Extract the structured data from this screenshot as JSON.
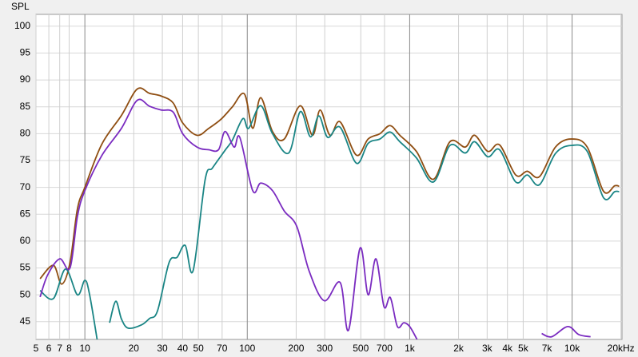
{
  "chart_data": {
    "type": "line",
    "ylabel": "SPL",
    "xscale": "log",
    "grid": true,
    "xlim": [
      5,
      20300
    ],
    "ylim": [
      41.7,
      102.2
    ],
    "yticks": [
      45,
      50,
      55,
      60,
      65,
      70,
      75,
      80,
      85,
      90,
      95,
      100
    ],
    "xticks": [
      5,
      6,
      7,
      8,
      10,
      20,
      30,
      40,
      50,
      70,
      100,
      200,
      300,
      500,
      700,
      {
        "value": 1000,
        "label": "1k"
      },
      {
        "value": 2000,
        "label": "2k"
      },
      {
        "value": 3000,
        "label": "3k"
      },
      {
        "value": 4000,
        "label": "4k"
      },
      {
        "value": 5000,
        "label": "5k"
      },
      {
        "value": 7000,
        "label": "7k"
      },
      {
        "value": 10000,
        "label": "10k"
      },
      {
        "value": 20000,
        "label": "20kHz"
      }
    ],
    "series": [
      {
        "color": "#8f4e12",
        "x": [
          5.3,
          6.4,
          7.2,
          8.1,
          9,
          10,
          12.7,
          16.8,
          21,
          25,
          29.5,
          35,
          40,
          49,
          58,
          69,
          81,
          96,
          108,
          121,
          143,
          169,
          212,
          252,
          281,
          323,
          373,
          470,
          555,
          656,
          757,
          870,
          1100,
          1400,
          1770,
          2200,
          2510,
          3030,
          3580,
          4500,
          5300,
          6300,
          7900,
          9870,
          12400,
          15600,
          18300,
          19500
        ],
        "values": [
          53,
          55.5,
          52,
          56,
          66,
          70,
          78,
          83.4,
          88.3,
          87.5,
          87,
          85.7,
          82,
          79.7,
          81,
          82.7,
          85,
          87.4,
          81,
          86.7,
          80.4,
          79,
          85.2,
          79.7,
          84.4,
          79.7,
          82.2,
          76,
          79,
          80,
          81.5,
          79.7,
          76.7,
          71.5,
          78.5,
          77.5,
          79.7,
          76.7,
          77.9,
          72.3,
          73,
          72,
          77.5,
          79,
          77.5,
          69.3,
          70.3,
          70.2
        ]
      },
      {
        "color": "#1a8585",
        "x": [
          5.3,
          6.4,
          7.6,
          9,
          10,
          10.7,
          12,
          13,
          14.2,
          15.5,
          16.8,
          18.5,
          22.3,
          25,
          28,
          33,
          37,
          41.5,
          46.4,
          55,
          61,
          73,
          81,
          94,
          102,
          121,
          143,
          180,
          212,
          245,
          276,
          313,
          373,
          470,
          555,
          656,
          757,
          870,
          1100,
          1400,
          1770,
          2200,
          2510,
          3030,
          3580,
          4500,
          5300,
          6300,
          7900,
          9870,
          12400,
          15600,
          18300,
          19500
        ],
        "values": [
          50.8,
          49.3,
          54.8,
          50,
          52.7,
          50,
          41,
          null,
          44.8,
          48.8,
          45.5,
          43.8,
          44.4,
          45.6,
          47,
          56,
          57,
          59.2,
          54.5,
          71.4,
          73.6,
          76.9,
          78.8,
          82.8,
          81,
          85.2,
          80,
          76.4,
          84.1,
          79.4,
          83.3,
          79.3,
          81.2,
          74.5,
          78.2,
          79,
          80.3,
          78.5,
          75.5,
          71,
          77.8,
          76.4,
          78.5,
          75.7,
          77,
          71,
          72.3,
          70.5,
          76.3,
          77.8,
          76.7,
          68.1,
          69.2,
          69.2
        ]
      },
      {
        "color": "#7a2bc0",
        "x": [
          5.3,
          5.9,
          7,
          8.1,
          9,
          10,
          12.7,
          16.8,
          21,
          25,
          29.5,
          35,
          40,
          49,
          58,
          66.5,
          73,
          83,
          90,
          108,
          121,
          143,
          169,
          202,
          240,
          298,
          373,
          420,
          495,
          555,
          620,
          695,
          760,
          840,
          920,
          1000,
          1110,
          1500,
          6500,
          7500,
          9400,
          11000,
          13000
        ],
        "values": [
          49.6,
          53.7,
          56.7,
          55,
          64.6,
          69.4,
          75.9,
          81,
          86.2,
          85.1,
          84.4,
          84,
          80,
          77.5,
          77,
          77,
          80.4,
          77.5,
          79.3,
          69.4,
          70.8,
          69.4,
          65.6,
          62.7,
          54.5,
          48.9,
          52.3,
          43.4,
          58.7,
          50,
          56.7,
          47.8,
          49.5,
          44.1,
          44.8,
          44.1,
          41.7,
          null,
          42.8,
          42.2,
          44.1,
          42.6,
          42.2
        ]
      }
    ]
  }
}
